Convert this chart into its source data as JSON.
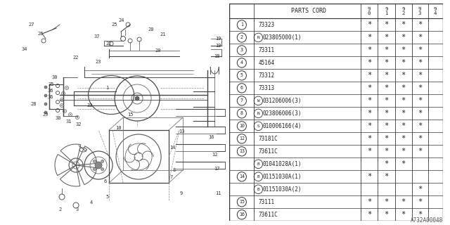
{
  "bg_color": "#ffffff",
  "header": "PARTS CORD",
  "year_labels": [
    "9\n0",
    "9\n1",
    "9\n2",
    "9\n3",
    "9\n4"
  ],
  "rows": [
    {
      "num": "1",
      "special": null,
      "part": "73323",
      "cols": [
        true,
        true,
        true,
        true,
        false
      ]
    },
    {
      "num": "2",
      "special": "N",
      "part": "023805000(1)",
      "cols": [
        true,
        true,
        true,
        true,
        false
      ]
    },
    {
      "num": "3",
      "special": null,
      "part": "73311",
      "cols": [
        true,
        true,
        true,
        true,
        false
      ]
    },
    {
      "num": "4",
      "special": null,
      "part": "45164",
      "cols": [
        true,
        true,
        true,
        true,
        false
      ]
    },
    {
      "num": "5",
      "special": null,
      "part": "73312",
      "cols": [
        true,
        true,
        true,
        true,
        false
      ]
    },
    {
      "num": "6",
      "special": null,
      "part": "73313",
      "cols": [
        true,
        true,
        true,
        true,
        false
      ]
    },
    {
      "num": "7",
      "special": "W",
      "part": "031206006(3)",
      "cols": [
        true,
        true,
        true,
        true,
        false
      ]
    },
    {
      "num": "8",
      "special": "N",
      "part": "023806006(3)",
      "cols": [
        true,
        true,
        true,
        true,
        false
      ]
    },
    {
      "num": "10",
      "special": "S",
      "part": "010006166(4)",
      "cols": [
        true,
        true,
        true,
        true,
        false
      ]
    },
    {
      "num": "12",
      "special": null,
      "part": "73181C",
      "cols": [
        true,
        true,
        true,
        true,
        false
      ]
    },
    {
      "num": "13",
      "special": null,
      "part": "73611C",
      "cols": [
        true,
        true,
        true,
        true,
        false
      ]
    },
    {
      "num": "",
      "special": "B",
      "part": "01041028A(1)",
      "cols": [
        false,
        true,
        true,
        false,
        false
      ]
    },
    {
      "num": "14",
      "special": "B",
      "part": "01151030A(1)",
      "cols": [
        true,
        true,
        false,
        false,
        false
      ]
    },
    {
      "num": "",
      "special": "B",
      "part": "01151030A(2)",
      "cols": [
        false,
        false,
        false,
        true,
        false
      ]
    },
    {
      "num": "15",
      "special": null,
      "part": "73111",
      "cols": [
        true,
        true,
        true,
        true,
        false
      ]
    },
    {
      "num": "16",
      "special": null,
      "part": "73611C",
      "cols": [
        true,
        true,
        true,
        true,
        false
      ]
    }
  ],
  "watermark": "A732A00048"
}
